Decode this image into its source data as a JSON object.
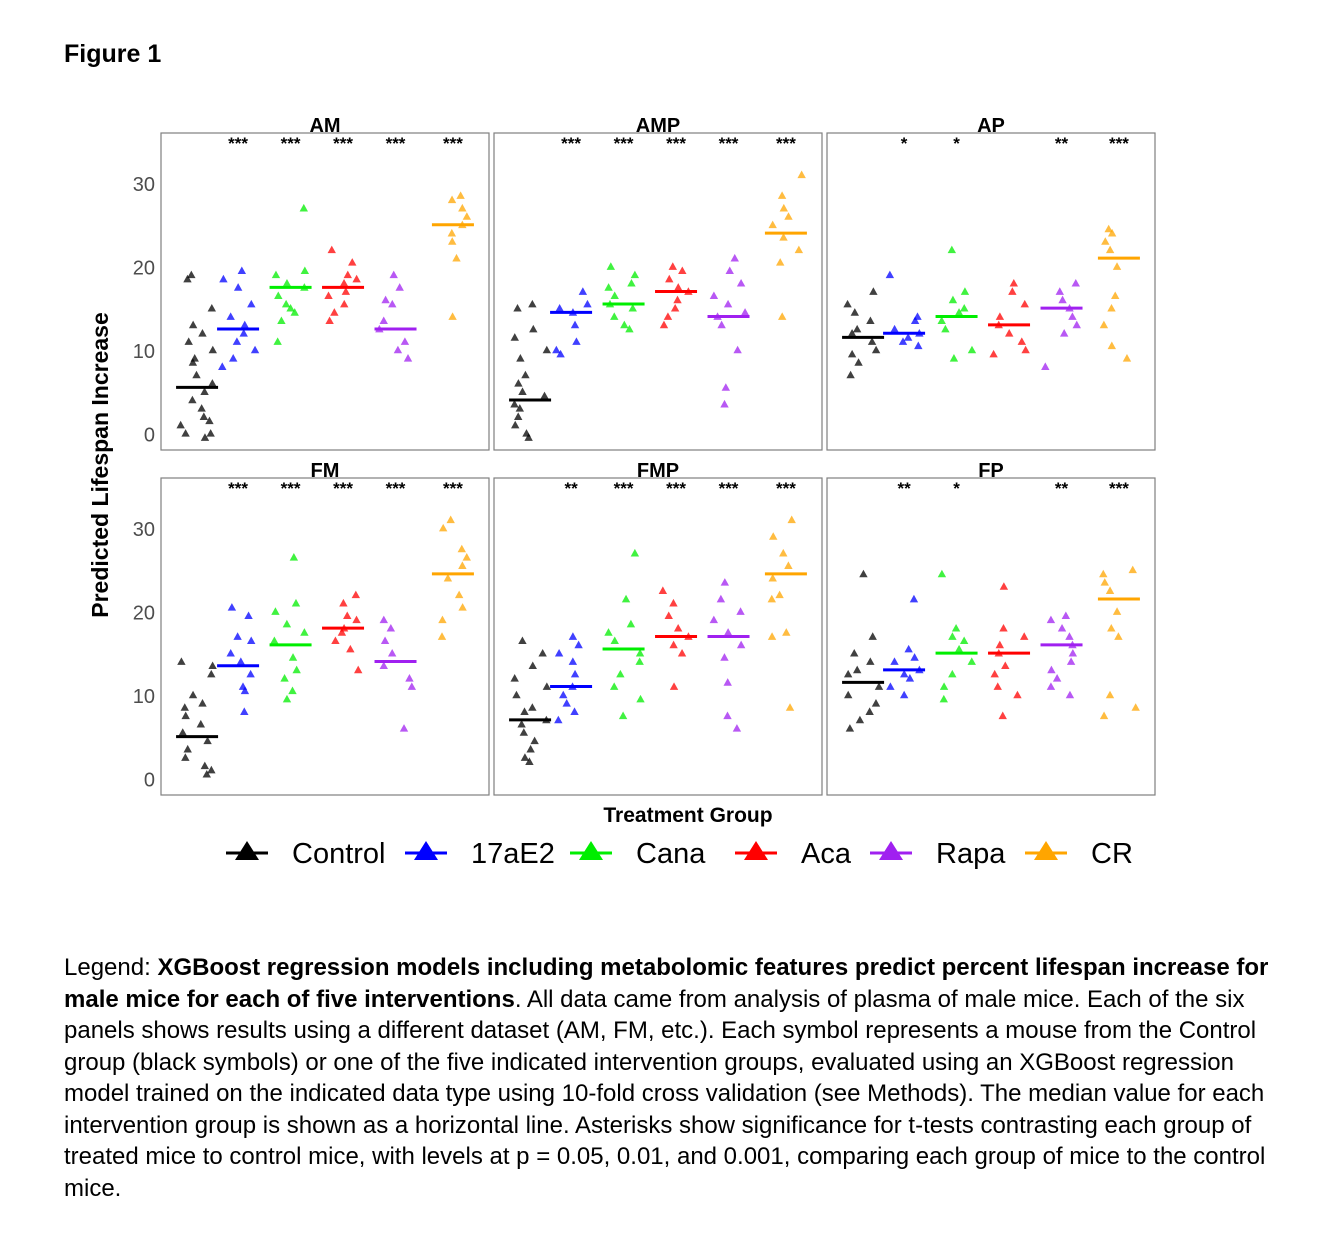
{
  "figure_label": "Figure 1",
  "colors": {
    "Control": "#000000",
    "17aE2": "#0000ff",
    "Cana": "#00ee00",
    "Aca": "#ff0000",
    "Rapa": "#a020f0",
    "CR": "#ffa500"
  },
  "caption": {
    "lead": "Legend",
    "bold_text": "XGBoost regression models including metabolomic features predict percent lifespan increase for male mice for each of five interventions",
    "body_text": ". All data came from analysis of plasma of male mice. Each of the six panels shows results using a different dataset (AM, FM, etc.). Each symbol represents a mouse from the Control group (black symbols) or one of the five indicated intervention groups, evaluated using an XGBoost regression model trained on the indicated data type using 10-fold cross validation (see Methods). The median value for each intervention group is shown as a horizontal line. Asterisks show significance for t-tests contrasting each group of treated mice to control mice, with  levels at p = 0.05, 0.01, and 0.001, comparing each group of mice to the control mice."
  },
  "chart_data": {
    "type": "scatter",
    "ylabel": "Predicted Lifespan Increase",
    "xlabel": "Treatment Group",
    "ylim": [
      -2,
      36
    ],
    "yticks": [
      0,
      10,
      20,
      30
    ],
    "groups": [
      "Control",
      "17aE2",
      "Cana",
      "Aca",
      "Rapa",
      "CR"
    ],
    "legend": {
      "position": "bottom",
      "entries": [
        "Control",
        "17aE2",
        "Cana",
        "Aca",
        "Rapa",
        "CR"
      ]
    },
    "grid": false,
    "panels": [
      {
        "title": "AM",
        "significance": [
          "***",
          "***",
          "***",
          "***",
          "***"
        ],
        "groups": {
          "Control": {
            "median": 5.5,
            "values": [
              19,
              18.5,
              15,
              13,
              12,
              11,
              10,
              9,
              8.5,
              7,
              6,
              5,
              4,
              3,
              2,
              1,
              0,
              -0.5,
              1.5,
              0
            ]
          },
          "17aE2": {
            "median": 12.5,
            "values": [
              19.5,
              18.5,
              17.5,
              15.5,
              14,
              13,
              12,
              11,
              10,
              9,
              8
            ]
          },
          "Cana": {
            "median": 17.5,
            "values": [
              27,
              19.5,
              19,
              18,
              17.5,
              16.5,
              15.5,
              15,
              14.5,
              13.5,
              11
            ]
          },
          "Aca": {
            "median": 17.5,
            "values": [
              22,
              20.5,
              19,
              18.5,
              18,
              17,
              16.5,
              15.5,
              14.5,
              13.5
            ]
          },
          "Rapa": {
            "median": 12.5,
            "values": [
              19,
              17.5,
              16,
              15.5,
              13.5,
              12.5,
              11,
              10,
              9
            ]
          },
          "CR": {
            "median": 25,
            "values": [
              28.5,
              28,
              27,
              26,
              25,
              24,
              23,
              21,
              14
            ]
          }
        }
      },
      {
        "title": "AMP",
        "significance": [
          "***",
          "***",
          "***",
          "***",
          "***"
        ],
        "groups": {
          "Control": {
            "median": 4,
            "values": [
              15.5,
              15,
              12.5,
              11.5,
              10,
              9,
              7,
              6,
              5,
              4.5,
              3.5,
              3,
              2,
              1,
              0,
              -0.5
            ]
          },
          "17aE2": {
            "median": 14.5,
            "values": [
              17,
              15.5,
              15,
              14.5,
              13,
              11,
              10,
              9.5
            ]
          },
          "Cana": {
            "median": 15.5,
            "values": [
              20,
              19,
              18,
              17.5,
              16.5,
              15.5,
              15,
              14,
              13,
              12.5
            ]
          },
          "Aca": {
            "median": 17,
            "values": [
              20,
              19.5,
              18.5,
              17.5,
              17,
              16,
              15,
              14,
              13
            ]
          },
          "Rapa": {
            "median": 14,
            "values": [
              21,
              19.5,
              18,
              16.5,
              15.5,
              14.5,
              14,
              13,
              10,
              5.5,
              3.5
            ]
          },
          "CR": {
            "median": 24,
            "values": [
              31,
              28.5,
              27,
              26,
              25,
              23.5,
              22,
              20.5,
              14
            ]
          }
        }
      },
      {
        "title": "AP",
        "significance": [
          "*",
          "*",
          "",
          "**",
          "***"
        ],
        "groups": {
          "Control": {
            "median": 11.5,
            "values": [
              17,
              15.5,
              14.5,
              13.5,
              12.5,
              12,
              11,
              10,
              9.5,
              8.5,
              7
            ]
          },
          "17aE2": {
            "median": 12,
            "values": [
              19,
              14,
              13.5,
              12.5,
              12,
              11.5,
              11,
              10.5
            ]
          },
          "Cana": {
            "median": 14,
            "values": [
              22,
              17,
              16,
              15,
              14.5,
              13.5,
              12.5,
              10,
              9
            ]
          },
          "Aca": {
            "median": 13,
            "values": [
              18,
              17,
              15.5,
              14,
              13,
              12,
              11,
              10,
              9.5
            ]
          },
          "Rapa": {
            "median": 15,
            "values": [
              18,
              17,
              16,
              15,
              14,
              13,
              12,
              8
            ]
          },
          "CR": {
            "median": 21,
            "values": [
              24.5,
              24,
              23,
              22,
              20,
              16.5,
              15,
              13,
              10.5,
              9
            ]
          }
        }
      },
      {
        "title": "FM",
        "significance": [
          "***",
          "***",
          "***",
          "***",
          "***"
        ],
        "groups": {
          "Control": {
            "median": 5,
            "values": [
              14,
              13.5,
              12.5,
              10,
              9,
              8.5,
              7.5,
              6.5,
              5.5,
              4.5,
              3.5,
              2.5,
              1.5,
              1,
              0.5
            ]
          },
          "17aE2": {
            "median": 13.5,
            "values": [
              20.5,
              19.5,
              17,
              16.5,
              15,
              14,
              12.5,
              11,
              10.5,
              8
            ]
          },
          "Cana": {
            "median": 16,
            "values": [
              26.5,
              21,
              20,
              18.5,
              17.5,
              16.5,
              14.5,
              13,
              12,
              10.5,
              9.5
            ]
          },
          "Aca": {
            "median": 18,
            "values": [
              22,
              21,
              19.5,
              19,
              18,
              17.5,
              16.5,
              15.5,
              13
            ]
          },
          "Rapa": {
            "median": 14,
            "values": [
              19,
              18,
              16.5,
              15,
              13.5,
              12,
              11,
              6
            ]
          },
          "CR": {
            "median": 24.5,
            "values": [
              31,
              30,
              27.5,
              26.5,
              25.5,
              24,
              22,
              20.5,
              19,
              17
            ]
          }
        }
      },
      {
        "title": "FMP",
        "significance": [
          "**",
          "***",
          "***",
          "***",
          "***"
        ],
        "groups": {
          "Control": {
            "median": 7,
            "values": [
              16.5,
              15,
              13.5,
              12,
              11,
              10,
              8.5,
              8,
              7,
              6.5,
              5.5,
              4.5,
              3.5,
              2.5,
              2
            ]
          },
          "17aE2": {
            "median": 11,
            "values": [
              17,
              16,
              15,
              14,
              12.5,
              11,
              10,
              9,
              8,
              7
            ]
          },
          "Cana": {
            "median": 15.5,
            "values": [
              27,
              21.5,
              18.5,
              17.5,
              16.5,
              15,
              14,
              12.5,
              11,
              9.5,
              7.5
            ]
          },
          "Aca": {
            "median": 17,
            "values": [
              22.5,
              21,
              19.5,
              18,
              17,
              16,
              15,
              11
            ]
          },
          "Rapa": {
            "median": 17,
            "values": [
              23.5,
              21.5,
              20,
              19,
              17.5,
              16,
              14.5,
              11.5,
              7.5,
              6
            ]
          },
          "CR": {
            "median": 24.5,
            "values": [
              31,
              29,
              27,
              25.5,
              24,
              22,
              21.5,
              17.5,
              17,
              8.5
            ]
          }
        }
      },
      {
        "title": "FP",
        "significance": [
          "**",
          "*",
          "",
          "**",
          "***"
        ],
        "groups": {
          "Control": {
            "median": 11.5,
            "values": [
              24.5,
              17,
              15,
              14,
              13,
              12.5,
              11,
              10,
              9,
              8,
              7,
              6
            ]
          },
          "17aE2": {
            "median": 13,
            "values": [
              21.5,
              15.5,
              14.5,
              14,
              13,
              12.5,
              12,
              11,
              10
            ]
          },
          "Cana": {
            "median": 15,
            "values": [
              24.5,
              18,
              17,
              16.5,
              15.5,
              14,
              12.5,
              11,
              9.5
            ]
          },
          "Aca": {
            "median": 15,
            "values": [
              23,
              18,
              17,
              16,
              15,
              13.5,
              12.5,
              11,
              10,
              7.5
            ]
          },
          "Rapa": {
            "median": 16,
            "values": [
              19.5,
              19,
              18,
              17,
              16,
              15,
              14,
              13,
              12,
              11,
              10
            ]
          },
          "CR": {
            "median": 21.5,
            "values": [
              25,
              24.5,
              23.5,
              22.5,
              20,
              18,
              17,
              10,
              8.5,
              7.5
            ]
          }
        }
      }
    ]
  }
}
